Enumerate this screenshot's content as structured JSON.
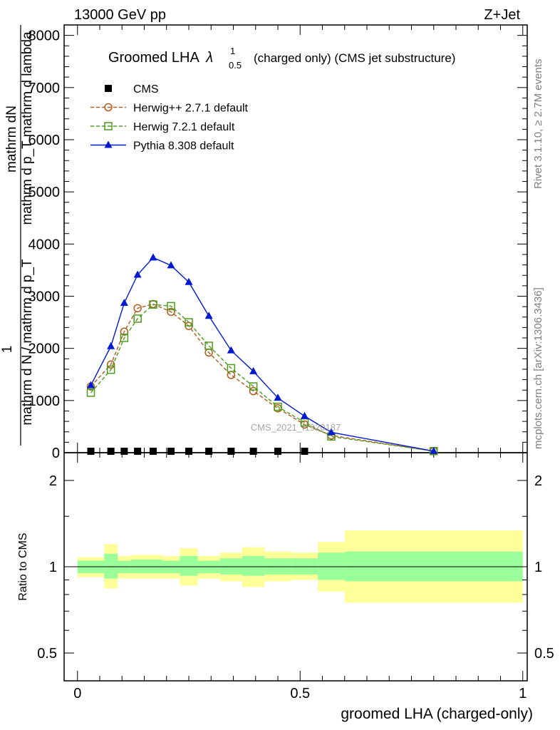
{
  "header": {
    "energy": "13000 GeV pp",
    "process": "Z+Jet",
    "title_main": "Groomed LHA",
    "title_lambda": "λ",
    "title_sup": "1",
    "title_sub": "0.5",
    "title_rest": "(charged only) (CMS jet substructure)",
    "watermark": "CMS_2021_I1920187",
    "rivet_label": "Rivet 3.1.10, ≥ 2.7M events",
    "mcplots_label": "mcplots.cern.ch [arXiv:1306.3436]"
  },
  "axes": {
    "ylabel_numerator": "mathrm dN",
    "ylabel_denominator": "mathrm d p_T mathrm d lambda",
    "ylabel_factor": "1",
    "ylabel_factor_den": "mathrm d N / mathrm d p_T",
    "ratio_ylabel": "Ratio to CMS",
    "xlabel": "groomed LHA (charged-only)"
  },
  "chart_data": {
    "type": "line",
    "title": "Groomed LHA λ^1_0.5 (charged only) (CMS jet substructure)",
    "xlabel": "groomed LHA (charged-only)",
    "xlim": [
      -0.03,
      1.01
    ],
    "ylim": [
      0,
      8200
    ],
    "x_ticks": [
      "0",
      "0.5",
      "1"
    ],
    "y_ticks": [
      "0",
      "1000",
      "2000",
      "3000",
      "4000",
      "5000",
      "6000",
      "7000",
      "8000"
    ],
    "legend": {
      "placement": "top-left"
    },
    "series": [
      {
        "name": "CMS",
        "color": "#000000",
        "marker": "square-filled",
        "x": [
          0.03,
          0.075,
          0.105,
          0.135,
          0.17,
          0.21,
          0.25,
          0.295,
          0.345,
          0.395,
          0.45,
          0.51
        ],
        "y": [
          0,
          0,
          0,
          0,
          0,
          0,
          0,
          0,
          0,
          0,
          0,
          0
        ]
      },
      {
        "name": "Herwig++ 2.7.1 default",
        "color": "#b15b1a",
        "marker": "circle-open",
        "dash": true,
        "x": [
          0.03,
          0.075,
          0.105,
          0.135,
          0.17,
          0.21,
          0.25,
          0.295,
          0.345,
          0.395,
          0.45,
          0.51,
          0.57,
          0.8
        ],
        "y": [
          1270,
          1690,
          2320,
          2770,
          2850,
          2700,
          2430,
          1920,
          1490,
          1180,
          850,
          540,
          330,
          30
        ]
      },
      {
        "name": "Herwig 7.2.1 default",
        "color": "#4c9a1c",
        "marker": "square-open",
        "dash": true,
        "x": [
          0.03,
          0.075,
          0.105,
          0.135,
          0.17,
          0.21,
          0.25,
          0.295,
          0.345,
          0.395,
          0.45,
          0.51,
          0.57,
          0.8
        ],
        "y": [
          1150,
          1590,
          2200,
          2570,
          2840,
          2810,
          2500,
          2050,
          1620,
          1270,
          880,
          580,
          310,
          30
        ]
      },
      {
        "name": "Pythia 8.308 default",
        "color": "#0019d1",
        "marker": "triangle-filled",
        "dash": false,
        "x": [
          0.03,
          0.075,
          0.105,
          0.135,
          0.17,
          0.21,
          0.25,
          0.295,
          0.345,
          0.395,
          0.45,
          0.51,
          0.57,
          0.8
        ],
        "y": [
          1290,
          2040,
          2870,
          3410,
          3740,
          3590,
          3270,
          2620,
          1960,
          1560,
          1050,
          700,
          390,
          30
        ]
      }
    ],
    "ratio": {
      "ylabel": "Ratio to CMS",
      "y_ticks": [
        "0.5",
        "1",
        "2"
      ],
      "reference": 1,
      "bins": [
        {
          "x0": 0.0,
          "x1": 0.06,
          "inner": [
            0.95,
            1.05
          ],
          "outer": [
            0.92,
            1.08
          ]
        },
        {
          "x0": 0.06,
          "x1": 0.09,
          "inner": [
            0.91,
            1.11
          ],
          "outer": [
            0.84,
            1.2
          ]
        },
        {
          "x0": 0.09,
          "x1": 0.12,
          "inner": [
            0.95,
            1.05
          ],
          "outer": [
            0.91,
            1.09
          ]
        },
        {
          "x0": 0.12,
          "x1": 0.15,
          "inner": [
            0.95,
            1.06
          ],
          "outer": [
            0.91,
            1.1
          ]
        },
        {
          "x0": 0.15,
          "x1": 0.19,
          "inner": [
            0.95,
            1.06
          ],
          "outer": [
            0.91,
            1.1
          ]
        },
        {
          "x0": 0.19,
          "x1": 0.23,
          "inner": [
            0.95,
            1.05
          ],
          "outer": [
            0.91,
            1.09
          ]
        },
        {
          "x0": 0.23,
          "x1": 0.27,
          "inner": [
            0.93,
            1.09
          ],
          "outer": [
            0.86,
            1.16
          ]
        },
        {
          "x0": 0.27,
          "x1": 0.32,
          "inner": [
            0.95,
            1.05
          ],
          "outer": [
            0.91,
            1.09
          ]
        },
        {
          "x0": 0.32,
          "x1": 0.37,
          "inner": [
            0.94,
            1.07
          ],
          "outer": [
            0.89,
            1.12
          ]
        },
        {
          "x0": 0.37,
          "x1": 0.42,
          "inner": [
            0.93,
            1.09
          ],
          "outer": [
            0.85,
            1.17
          ]
        },
        {
          "x0": 0.42,
          "x1": 0.48,
          "inner": [
            0.94,
            1.07
          ],
          "outer": [
            0.89,
            1.13
          ]
        },
        {
          "x0": 0.48,
          "x1": 0.54,
          "inner": [
            0.94,
            1.07
          ],
          "outer": [
            0.9,
            1.12
          ]
        },
        {
          "x0": 0.54,
          "x1": 0.6,
          "inner": [
            0.9,
            1.12
          ],
          "outer": [
            0.82,
            1.22
          ]
        },
        {
          "x0": 0.6,
          "x1": 1.0,
          "inner": [
            0.89,
            1.13
          ],
          "outer": [
            0.75,
            1.34
          ]
        }
      ]
    },
    "colors": {
      "band_inner": "#99ff99",
      "band_outer": "#ffff99"
    }
  }
}
